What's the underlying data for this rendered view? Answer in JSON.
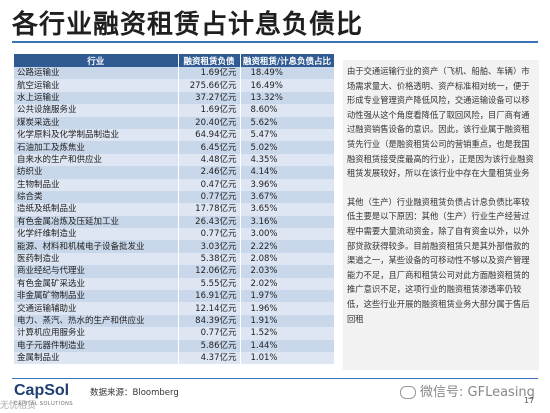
{
  "title": "各行业融资租赁占计息负债比",
  "table": {
    "headers": [
      "行业",
      "融资租赁负债",
      "融资租赁/计息负债占比"
    ],
    "rows": [
      [
        "公路运输业",
        "1.69亿元",
        "18.49%"
      ],
      [
        "航空运输业",
        "275.66亿元",
        "16.49%"
      ],
      [
        "水上运输业",
        "37.27亿元",
        "13.32%"
      ],
      [
        "公共设施服务业",
        "1.69亿元",
        "8.60%"
      ],
      [
        "煤炭采选业",
        "20.40亿元",
        "5.62%"
      ],
      [
        "化学原料及化学制品制造业",
        "64.94亿元",
        "5.47%"
      ],
      [
        "石油加工及炼焦业",
        "6.45亿元",
        "5.02%"
      ],
      [
        "自来水的生产和供应业",
        "4.48亿元",
        "4.35%"
      ],
      [
        "纺织业",
        "2.46亿元",
        "4.14%"
      ],
      [
        "生物制品业",
        "0.47亿元",
        "3.96%"
      ],
      [
        "综合类",
        "0.77亿元",
        "3.67%"
      ],
      [
        "造纸及纸制品业",
        "17.78亿元",
        "3.65%"
      ],
      [
        "有色金属冶炼及压延加工业",
        "26.43亿元",
        "3.16%"
      ],
      [
        "化学纤维制造业",
        "0.77亿元",
        "3.00%"
      ],
      [
        "能源、材料和机械电子设备批发业",
        "3.03亿元",
        "2.22%"
      ],
      [
        "医药制造业",
        "5.38亿元",
        "2.08%"
      ],
      [
        "商业经纪与代理业",
        "12.06亿元",
        "2.03%"
      ],
      [
        "有色金属矿采选业",
        "5.55亿元",
        "2.02%"
      ],
      [
        "非金属矿物制品业",
        "16.91亿元",
        "1.97%"
      ],
      [
        "交通运输辅助业",
        "12.14亿元",
        "1.96%"
      ],
      [
        "电力、蒸汽、热水的生产和供应业",
        "84.39亿元",
        "1.91%"
      ],
      [
        "计算机应用服务业",
        "0.77亿元",
        "1.52%"
      ],
      [
        "电子元器件制造业",
        "5.86亿元",
        "1.44%"
      ],
      [
        "金属制品业",
        "4.37亿元",
        "1.01%"
      ]
    ]
  },
  "side_text": {
    "p1": "由于交通运输行业的资产（飞机、船舶、车辆）市场需求量大、价格透明、资产标准相对统一，便于形成专业管理资产降低风险，交通运输设备可以移动性强从这个角度看降低了取回风险，目厂商有通过融资销售设备的意识。因此，该行业属于融资租赁先行业（是融资租赁公司的营销重点，也是我国融资租赁接受度最高的行业），正是因为该行业融资租赁发展较好，所以在该行业中存在大量租赁业务",
    "p2": "其他（生产）行业融资租赁负债占计息负债比率较低主要是以下原因：其他（生产）行业生产经营过程中需要大量流动资金，除了自有资金以外，以外部贷款获得较多。目前融资租赁只是其外部借款的渠道之一，某些设备的可移动性不够以及资产管理能力不足，且厂商和租赁公司对此方面融资租赁的推广意识不足，这项行业的融资租赁渗透率仍较低，这些行业开展的融资租赁业务大部分属于售后回租"
  },
  "footer": {
    "logo": "CapSol",
    "logo_sub": "CAPITAL SOLUTIONS",
    "source": "数据来源：Bloomberg",
    "wechat": "微信号: GFLeasing",
    "page": "17",
    "corner": "无忧租赁"
  },
  "colors": {
    "header_bg": "#2f5a92",
    "row_a": "#c9d7ea",
    "row_b": "#dde6f2",
    "accent": "#3a73b8"
  }
}
